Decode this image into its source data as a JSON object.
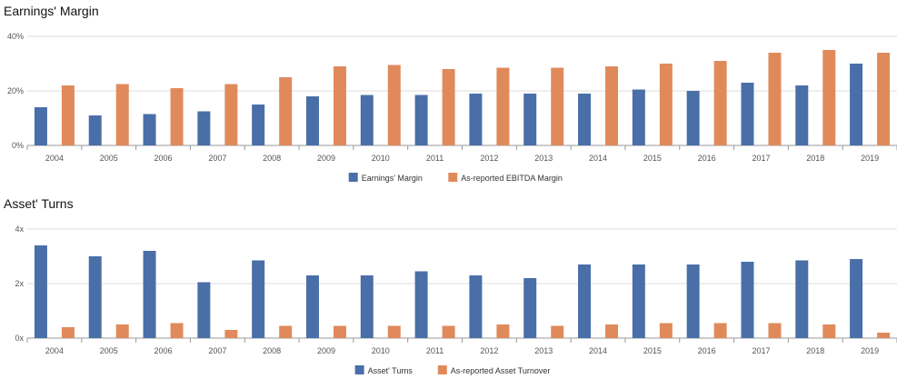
{
  "colors": {
    "series_a": "#4a6fa8",
    "series_b": "#e08a5c",
    "grid": "#dddddd",
    "axis": "#999999"
  },
  "chart_data": [
    {
      "type": "bar",
      "title": "Earnings' Margin",
      "categories": [
        "2004",
        "2005",
        "2006",
        "2007",
        "2008",
        "2009",
        "2010",
        "2011",
        "2012",
        "2013",
        "2014",
        "2015",
        "2016",
        "2017",
        "2018",
        "2019"
      ],
      "y_ticks": [
        "0%",
        "20%",
        "40%"
      ],
      "ylim": [
        0,
        40
      ],
      "grid": true,
      "legend": "bottom-center",
      "series": [
        {
          "name": "Earnings' Margin",
          "values": [
            14,
            11,
            11.5,
            12.5,
            15,
            18,
            18.5,
            18.5,
            19,
            19,
            19,
            20.5,
            20,
            23,
            22,
            30
          ]
        },
        {
          "name": "As-reported EBITDA Margin",
          "values": [
            22,
            22.5,
            21,
            22.5,
            25,
            29,
            29.5,
            28,
            28.5,
            28.5,
            29,
            30,
            31,
            34,
            35,
            34
          ]
        }
      ]
    },
    {
      "type": "bar",
      "title": "Asset' Turns",
      "categories": [
        "2004",
        "2005",
        "2006",
        "2007",
        "2008",
        "2009",
        "2010",
        "2011",
        "2012",
        "2013",
        "2014",
        "2015",
        "2016",
        "2017",
        "2018",
        "2019"
      ],
      "y_ticks": [
        "0x",
        "2x",
        "4x"
      ],
      "ylim": [
        0,
        4
      ],
      "grid": true,
      "legend": "bottom-center",
      "series": [
        {
          "name": "Asset' Turns",
          "values": [
            3.4,
            3.0,
            3.2,
            2.05,
            2.85,
            2.3,
            2.3,
            2.45,
            2.3,
            2.2,
            2.7,
            2.7,
            2.7,
            2.8,
            2.85,
            2.9
          ]
        },
        {
          "name": "As-reported Asset Turnover",
          "values": [
            0.4,
            0.5,
            0.55,
            0.3,
            0.45,
            0.45,
            0.45,
            0.45,
            0.5,
            0.45,
            0.5,
            0.55,
            0.55,
            0.55,
            0.5,
            0.2
          ]
        }
      ]
    }
  ]
}
